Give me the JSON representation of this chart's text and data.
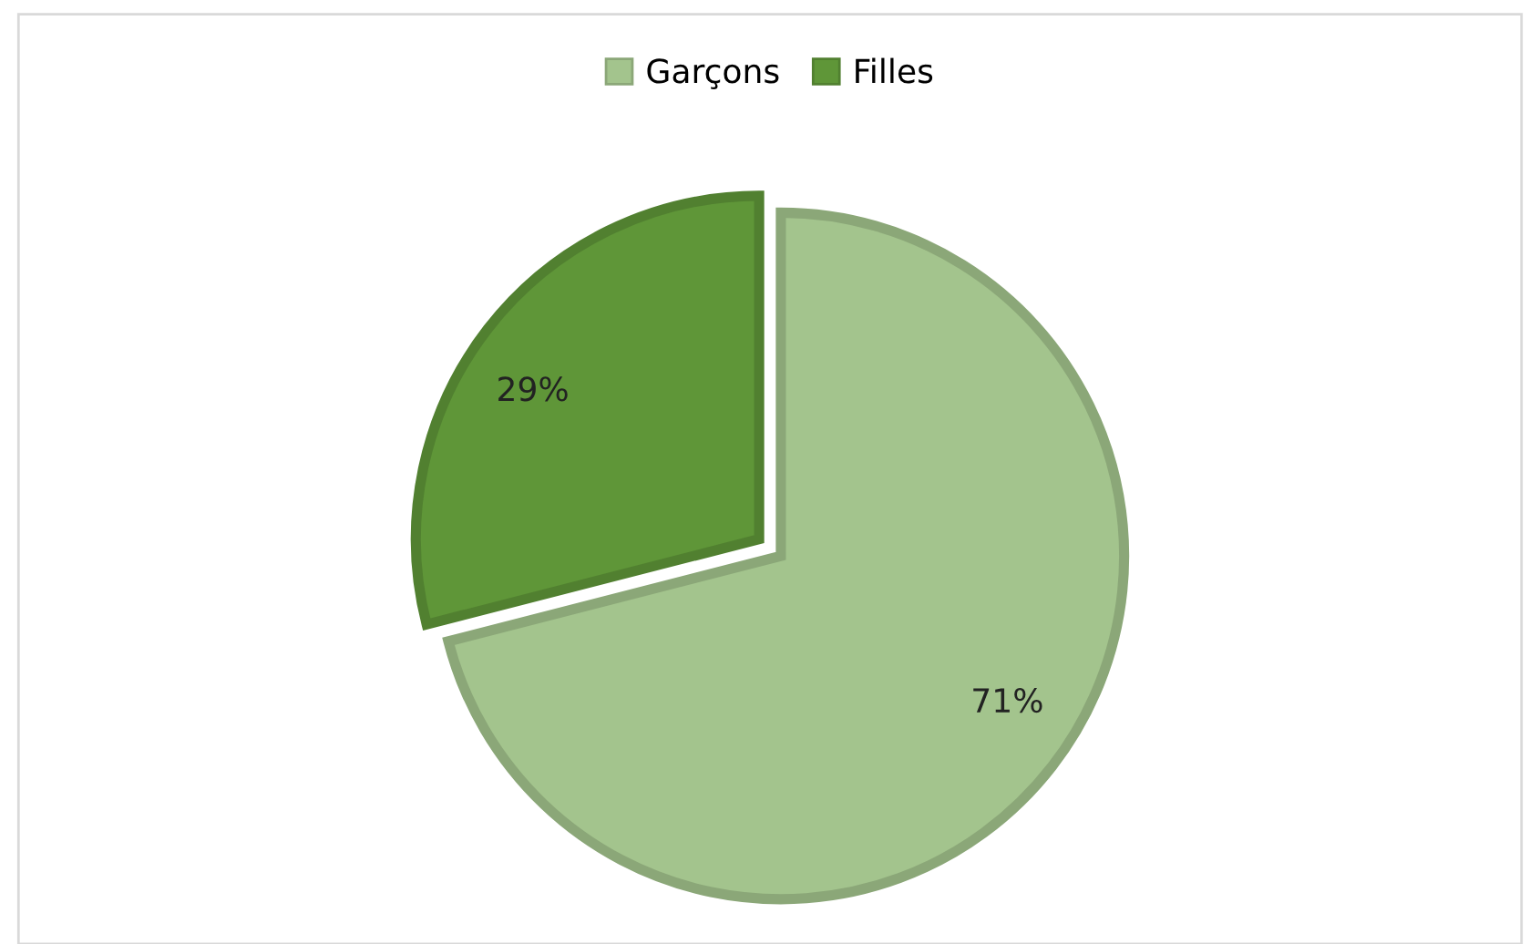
{
  "chart_data": {
    "type": "pie",
    "categories": [
      "Garçons",
      "Filles"
    ],
    "values": [
      71,
      29
    ],
    "colors": [
      "#a3c48d",
      "#5f9638"
    ],
    "legend": "top",
    "value_labels": [
      "71%",
      "29%"
    ]
  }
}
